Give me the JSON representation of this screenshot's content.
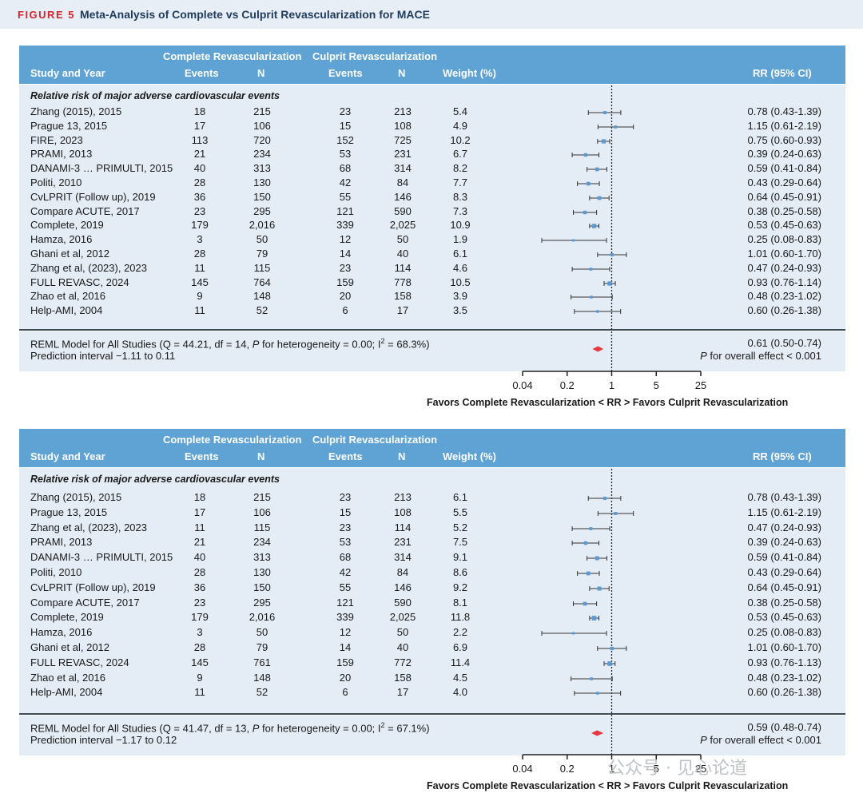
{
  "figure": {
    "label": "FIGURE 5",
    "title": "Meta-Analysis of Complete vs Culprit Revascularization for MACE"
  },
  "colors": {
    "header": "#5fa3d4",
    "body": "#e4ecf5",
    "point": "#5b9bd5",
    "diamond": "#e8363d"
  },
  "watermark": "公众号 · 见心论道",
  "panels": [
    {
      "header": {
        "study": "Study and Year",
        "complete_group": "Complete Revascularization",
        "culprit_group": "Culprit Revascularization",
        "events": "Events",
        "n": "N",
        "weight": "Weight (%)",
        "rr": "RR (95% CI)"
      },
      "subtitle": "Relative risk of major adverse cardiovascular events",
      "summary": {
        "model_text_1": "REML Model for All Studies (Q = 44.21, df = 14, ",
        "p_italic": "P",
        "model_text_2": " for heterogeneity = 0.00; I",
        "sup": "2",
        "model_text_3": " = 68.3%)",
        "prediction": "Prediction interval −1.11 to 0.11",
        "rr_text": "0.61 (0.50-0.74)",
        "overall_p_italic": "P",
        "overall_text": " for overall effect < 0.001"
      },
      "axis": {
        "ticks": [
          "0.04",
          "0.2",
          "1",
          "5",
          "25"
        ],
        "label": "Favors Complete Revascularization < RR > Favors Culprit Revascularization"
      },
      "chart_data": {
        "type": "forest",
        "x_scale": "log",
        "xlim": [
          0.04,
          25
        ],
        "reference_line": 1,
        "pooled": {
          "rr": 0.61,
          "lower": 0.5,
          "upper": 0.74
        },
        "studies": [
          {
            "study": "Zhang (2015), 2015",
            "ce": "18",
            "cn": "215",
            "ue": "23",
            "un": "213",
            "weight": "5.4",
            "rr_text": "0.78 (0.43-1.39)",
            "rr": 0.78,
            "lo": 0.43,
            "hi": 1.39
          },
          {
            "study": "Prague 13, 2015",
            "ce": "17",
            "cn": "106",
            "ue": "15",
            "un": "108",
            "weight": "4.9",
            "rr_text": "1.15 (0.61-2.19)",
            "rr": 1.15,
            "lo": 0.61,
            "hi": 2.19
          },
          {
            "study": "FIRE, 2023",
            "ce": "113",
            "cn": "720",
            "ue": "152",
            "un": "725",
            "weight": "10.2",
            "rr_text": "0.75 (0.60-0.93)",
            "rr": 0.75,
            "lo": 0.6,
            "hi": 0.93
          },
          {
            "study": "PRAMI, 2013",
            "ce": "21",
            "cn": "234",
            "ue": "53",
            "un": "231",
            "weight": "6.7",
            "rr_text": "0.39 (0.24-0.63)",
            "rr": 0.39,
            "lo": 0.24,
            "hi": 0.63
          },
          {
            "study": "DANAMI-3 … PRIMULTI, 2015",
            "ce": "40",
            "cn": "313",
            "ue": "68",
            "un": "314",
            "weight": "8.2",
            "rr_text": "0.59 (0.41-0.84)",
            "rr": 0.59,
            "lo": 0.41,
            "hi": 0.84
          },
          {
            "study": "Politi, 2010",
            "ce": "28",
            "cn": "130",
            "ue": "42",
            "un": "84",
            "weight": "7.7",
            "rr_text": "0.43 (0.29-0.64)",
            "rr": 0.43,
            "lo": 0.29,
            "hi": 0.64
          },
          {
            "study": "CvLPRIT (Follow up), 2019",
            "ce": "36",
            "cn": "150",
            "ue": "55",
            "un": "146",
            "weight": "8.3",
            "rr_text": "0.64 (0.45-0.91)",
            "rr": 0.64,
            "lo": 0.45,
            "hi": 0.91
          },
          {
            "study": "Compare ACUTE, 2017",
            "ce": "23",
            "cn": "295",
            "ue": "121",
            "un": "590",
            "weight": "7.3",
            "rr_text": "0.38 (0.25-0.58)",
            "rr": 0.38,
            "lo": 0.25,
            "hi": 0.58
          },
          {
            "study": "Complete, 2019",
            "ce": "179",
            "cn": "2,016",
            "ue": "339",
            "un": "2,025",
            "weight": "10.9",
            "rr_text": "0.53 (0.45-0.63)",
            "rr": 0.53,
            "lo": 0.45,
            "hi": 0.63
          },
          {
            "study": "Hamza, 2016",
            "ce": "3",
            "cn": "50",
            "ue": "12",
            "un": "50",
            "weight": "1.9",
            "rr_text": "0.25 (0.08-0.83)",
            "rr": 0.25,
            "lo": 0.08,
            "hi": 0.83
          },
          {
            "study": "Ghani et al, 2012",
            "ce": "28",
            "cn": "79",
            "ue": "14",
            "un": "40",
            "weight": "6.1",
            "rr_text": "1.01 (0.60-1.70)",
            "rr": 1.01,
            "lo": 0.6,
            "hi": 1.7
          },
          {
            "study": "Zhang et al, (2023), 2023",
            "ce": "11",
            "cn": "115",
            "ue": "23",
            "un": "114",
            "weight": "4.6",
            "rr_text": "0.47 (0.24-0.93)",
            "rr": 0.47,
            "lo": 0.24,
            "hi": 0.93
          },
          {
            "study": "FULL REVASC, 2024",
            "ce": "145",
            "cn": "764",
            "ue": "159",
            "un": "778",
            "weight": "10.5",
            "rr_text": "0.93 (0.76-1.14)",
            "rr": 0.93,
            "lo": 0.76,
            "hi": 1.14
          },
          {
            "study": "Zhao et al, 2016",
            "ce": "9",
            "cn": "148",
            "ue": "20",
            "un": "158",
            "weight": "3.9",
            "rr_text": "0.48 (0.23-1.02)",
            "rr": 0.48,
            "lo": 0.23,
            "hi": 1.02
          },
          {
            "study": "Help-AMI, 2004",
            "ce": "11",
            "cn": "52",
            "ue": "6",
            "un": "17",
            "weight": "3.5",
            "rr_text": "0.60 (0.26-1.38)",
            "rr": 0.6,
            "lo": 0.26,
            "hi": 1.38
          }
        ]
      }
    },
    {
      "header": {
        "study": "Study and Year",
        "complete_group": "Complete Revascularization",
        "culprit_group": "Culprit Revascularization",
        "events": "Events",
        "n": "N",
        "weight": "Weight (%)",
        "rr": "RR (95% CI)"
      },
      "subtitle": "Relative risk of major adverse cardiovascular events",
      "summary": {
        "model_text_1": "REML Model for All Studies (Q = 41.47, df = 13, ",
        "p_italic": "P",
        "model_text_2": " for heterogeneity = 0.00; I",
        "sup": "2",
        "model_text_3": " = 67.1%)",
        "prediction": "Prediction interval −1.17 to 0.12",
        "rr_text": "0.59 (0.48-0.74)",
        "overall_p_italic": "P",
        "overall_text": " for overall effect < 0.001"
      },
      "axis": {
        "ticks": [
          "0.04",
          "0.2",
          "1",
          "5",
          "25"
        ],
        "label": "Favors Complete Revascularization < RR > Favors Culprit Revascularization"
      },
      "chart_data": {
        "type": "forest",
        "x_scale": "log",
        "xlim": [
          0.04,
          25
        ],
        "reference_line": 1,
        "pooled": {
          "rr": 0.59,
          "lower": 0.48,
          "upper": 0.74
        },
        "studies": [
          {
            "study": "Zhang (2015), 2015",
            "ce": "18",
            "cn": "215",
            "ue": "23",
            "un": "213",
            "weight": "6.1",
            "rr_text": "0.78 (0.43-1.39)",
            "rr": 0.78,
            "lo": 0.43,
            "hi": 1.39
          },
          {
            "study": "Prague 13, 2015",
            "ce": "17",
            "cn": "106",
            "ue": "15",
            "un": "108",
            "weight": "5.5",
            "rr_text": "1.15 (0.61-2.19)",
            "rr": 1.15,
            "lo": 0.61,
            "hi": 2.19
          },
          {
            "study": "Zhang et al, (2023), 2023",
            "ce": "11",
            "cn": "115",
            "ue": "23",
            "un": "114",
            "weight": "5.2",
            "rr_text": "0.47 (0.24-0.93)",
            "rr": 0.47,
            "lo": 0.24,
            "hi": 0.93
          },
          {
            "study": "PRAMI, 2013",
            "ce": "21",
            "cn": "234",
            "ue": "53",
            "un": "231",
            "weight": "7.5",
            "rr_text": "0.39 (0.24-0.63)",
            "rr": 0.39,
            "lo": 0.24,
            "hi": 0.63
          },
          {
            "study": "DANAMI-3 … PRIMULTI, 2015",
            "ce": "40",
            "cn": "313",
            "ue": "68",
            "un": "314",
            "weight": "9.1",
            "rr_text": "0.59 (0.41-0.84)",
            "rr": 0.59,
            "lo": 0.41,
            "hi": 0.84
          },
          {
            "study": "Politi, 2010",
            "ce": "28",
            "cn": "130",
            "ue": "42",
            "un": "84",
            "weight": "8.6",
            "rr_text": "0.43 (0.29-0.64)",
            "rr": 0.43,
            "lo": 0.29,
            "hi": 0.64
          },
          {
            "study": "CvLPRIT (Follow up), 2019",
            "ce": "36",
            "cn": "150",
            "ue": "55",
            "un": "146",
            "weight": "9.2",
            "rr_text": "0.64 (0.45-0.91)",
            "rr": 0.64,
            "lo": 0.45,
            "hi": 0.91
          },
          {
            "study": "Compare ACUTE, 2017",
            "ce": "23",
            "cn": "295",
            "ue": "121",
            "un": "590",
            "weight": "8.1",
            "rr_text": "0.38 (0.25-0.58)",
            "rr": 0.38,
            "lo": 0.25,
            "hi": 0.58
          },
          {
            "study": "Complete, 2019",
            "ce": "179",
            "cn": "2,016",
            "ue": "339",
            "un": "2,025",
            "weight": "11.8",
            "rr_text": "0.53 (0.45-0.63)",
            "rr": 0.53,
            "lo": 0.45,
            "hi": 0.63
          },
          {
            "study": "Hamza, 2016",
            "ce": "3",
            "cn": "50",
            "ue": "12",
            "un": "50",
            "weight": "2.2",
            "rr_text": "0.25 (0.08-0.83)",
            "rr": 0.25,
            "lo": 0.08,
            "hi": 0.83
          },
          {
            "study": "Ghani et al, 2012",
            "ce": "28",
            "cn": "79",
            "ue": "14",
            "un": "40",
            "weight": "6.9",
            "rr_text": "1.01 (0.60-1.70)",
            "rr": 1.01,
            "lo": 0.6,
            "hi": 1.7
          },
          {
            "study": "FULL REVASC, 2024",
            "ce": "145",
            "cn": "761",
            "ue": "159",
            "un": "772",
            "weight": "11.4",
            "rr_text": "0.93 (0.76-1.13)",
            "rr": 0.93,
            "lo": 0.76,
            "hi": 1.13
          },
          {
            "study": "Zhao et al, 2016",
            "ce": "9",
            "cn": "148",
            "ue": "20",
            "un": "158",
            "weight": "4.5",
            "rr_text": "0.48 (0.23-1.02)",
            "rr": 0.48,
            "lo": 0.23,
            "hi": 1.02
          },
          {
            "study": "Help-AMI, 2004",
            "ce": "11",
            "cn": "52",
            "ue": "6",
            "un": "17",
            "weight": "4.0",
            "rr_text": "0.60 (0.26-1.38)",
            "rr": 0.6,
            "lo": 0.26,
            "hi": 1.38
          }
        ]
      }
    }
  ]
}
